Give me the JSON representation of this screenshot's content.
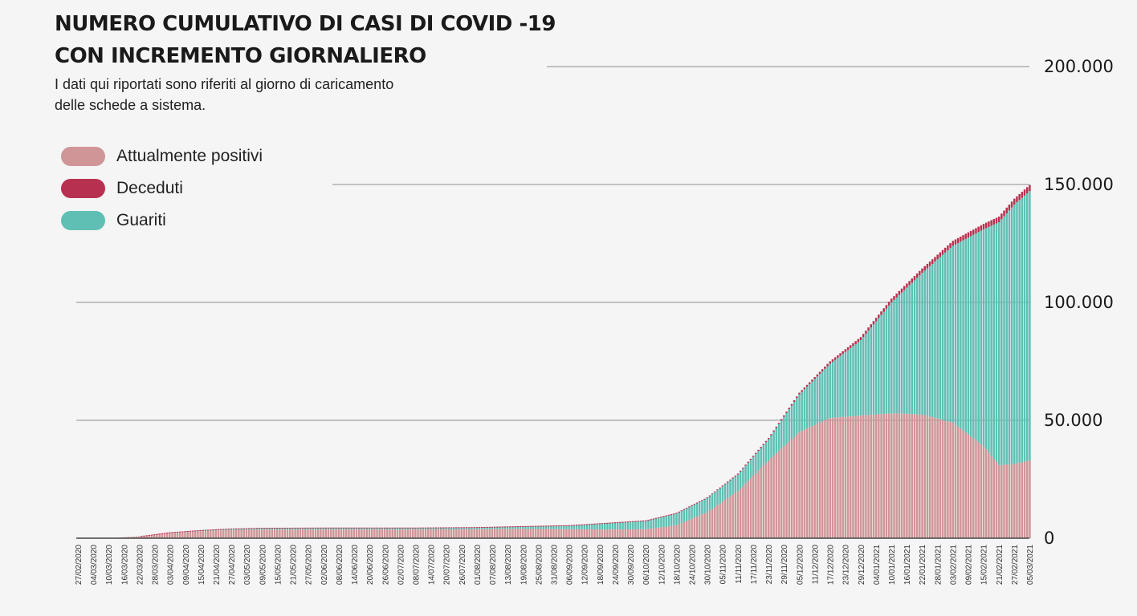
{
  "header": {
    "title_line1": "NUMERO CUMULATIVO DI CASI DI COVID -19",
    "title_line2": "CON INCREMENTO GIORNALIERO",
    "subtitle_line1": "I dati qui riportati sono riferiti al giorno di caricamento",
    "subtitle_line2": "delle schede a sistema."
  },
  "colors": {
    "positivi": "#cf9597",
    "deceduti": "#b8304f",
    "guariti": "#5fbfb4",
    "gridline": "#b0b0b0",
    "baseline": "#444444"
  },
  "chart_data": {
    "type": "bar",
    "stacked": true,
    "ylim": [
      0,
      200000
    ],
    "yticks": [
      0,
      50000,
      100000,
      150000,
      200000
    ],
    "ytick_labels": [
      "0",
      "50.000",
      "100.000",
      "150.000",
      "200.000"
    ],
    "grid": true,
    "legend_position": "top-left",
    "series": [
      {
        "name": "Attualmente positivi",
        "key": "positivi"
      },
      {
        "name": "Deceduti",
        "key": "deceduti"
      },
      {
        "name": "Guariti",
        "key": "guariti"
      }
    ],
    "x_labels": [
      "27/02/2020",
      "04/03/2020",
      "10/03/2020",
      "16/03/2020",
      "22/03/2020",
      "28/03/2020",
      "03/04/2020",
      "09/04/2020",
      "15/04/2020",
      "21/04/2020",
      "27/04/2020",
      "03/05/2020",
      "09/05/2020",
      "15/05/2020",
      "21/05/2020",
      "27/05/2020",
      "02/06/2020",
      "08/06/2020",
      "14/06/2020",
      "20/06/2020",
      "26/06/2020",
      "02/07/2020",
      "08/07/2020",
      "14/07/2020",
      "20/07/2020",
      "26/07/2020",
      "01/08/2020",
      "07/08/2020",
      "13/08/2020",
      "19/08/2020",
      "25/08/2020",
      "31/08/2020",
      "06/09/2020",
      "12/09/2020",
      "18/09/2020",
      "24/09/2020",
      "30/09/2020",
      "06/10/2020",
      "12/10/2020",
      "18/10/2020",
      "24/10/2020",
      "30/10/2020",
      "05/11/2020",
      "11/11/2020",
      "17/11/2020",
      "23/11/2020",
      "29/11/2020",
      "05/12/2020",
      "11/12/2020",
      "17/12/2020",
      "23/12/2020",
      "29/12/2020",
      "04/01/2021",
      "10/01/2021",
      "16/01/2021",
      "22/01/2021",
      "28/01/2021",
      "03/02/2021",
      "09/02/2021",
      "15/02/2021",
      "21/02/2021",
      "27/02/2021",
      "05/03/2021"
    ],
    "bar_days_per_label": 6,
    "anchors": [
      {
        "date": "27/02/2020",
        "positivi": 0,
        "deceduti": 0,
        "guariti": 0
      },
      {
        "date": "10/03/2020",
        "positivi": 0,
        "deceduti": 0,
        "guariti": 0
      },
      {
        "date": "22/03/2020",
        "positivi": 800,
        "deceduti": 0,
        "guariti": 0
      },
      {
        "date": "03/04/2020",
        "positivi": 2200,
        "deceduti": 100,
        "guariti": 200
      },
      {
        "date": "15/04/2020",
        "positivi": 3000,
        "deceduti": 150,
        "guariti": 300
      },
      {
        "date": "27/04/2020",
        "positivi": 3500,
        "deceduti": 180,
        "guariti": 400
      },
      {
        "date": "09/05/2020",
        "positivi": 3700,
        "deceduti": 200,
        "guariti": 500
      },
      {
        "date": "02/06/2020",
        "positivi": 3700,
        "deceduti": 200,
        "guariti": 600
      },
      {
        "date": "08/07/2020",
        "positivi": 3700,
        "deceduti": 200,
        "guariti": 600
      },
      {
        "date": "01/08/2020",
        "positivi": 3800,
        "deceduti": 200,
        "guariti": 700
      },
      {
        "date": "13/08/2020",
        "positivi": 4000,
        "deceduti": 200,
        "guariti": 800
      },
      {
        "date": "06/09/2020",
        "positivi": 3800,
        "deceduti": 200,
        "guariti": 1500
      },
      {
        "date": "24/09/2020",
        "positivi": 3700,
        "deceduti": 250,
        "guariti": 2800
      },
      {
        "date": "06/10/2020",
        "positivi": 3800,
        "deceduti": 250,
        "guariti": 3500
      },
      {
        "date": "18/10/2020",
        "positivi": 5500,
        "deceduti": 250,
        "guariti": 5000
      },
      {
        "date": "30/10/2020",
        "positivi": 11000,
        "deceduti": 300,
        "guariti": 6000
      },
      {
        "date": "11/11/2020",
        "positivi": 20000,
        "deceduti": 400,
        "guariti": 7000
      },
      {
        "date": "23/11/2020",
        "positivi": 33000,
        "deceduti": 500,
        "guariti": 9000
      },
      {
        "date": "05/12/2020",
        "positivi": 45000,
        "deceduti": 700,
        "guariti": 16000
      },
      {
        "date": "17/12/2020",
        "positivi": 51000,
        "deceduti": 1000,
        "guariti": 23000
      },
      {
        "date": "29/12/2020",
        "positivi": 52000,
        "deceduti": 1300,
        "guariti": 32000
      },
      {
        "date": "10/01/2021",
        "positivi": 53000,
        "deceduti": 1600,
        "guariti": 47000
      },
      {
        "date": "22/01/2021",
        "positivi": 52500,
        "deceduti": 1900,
        "guariti": 60000
      },
      {
        "date": "03/02/2021",
        "positivi": 49000,
        "deceduti": 2100,
        "guariti": 75000
      },
      {
        "date": "15/02/2021",
        "positivi": 39000,
        "deceduti": 2300,
        "guariti": 92000
      },
      {
        "date": "21/02/2021",
        "positivi": 31000,
        "deceduti": 2400,
        "guariti": 103000
      },
      {
        "date": "27/02/2021",
        "positivi": 31500,
        "deceduti": 2500,
        "guariti": 110000
      },
      {
        "date": "09/03/2021",
        "positivi": 34000,
        "deceduti": 2700,
        "guariti": 117000
      }
    ]
  }
}
